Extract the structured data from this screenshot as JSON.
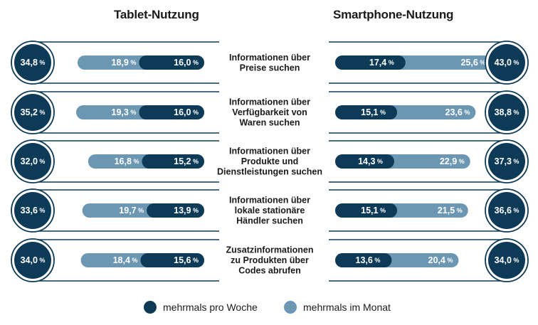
{
  "chart_data": {
    "type": "bar",
    "left_title": "Tablet-Nutzung",
    "right_title": "Smartphone-Nutzung",
    "categories": [
      [
        "Informationen über",
        "Preise suchen"
      ],
      [
        "Informationen über",
        "Verfügbarkeit von",
        "Waren suchen"
      ],
      [
        "Informationen über",
        "Produkte und",
        "Dienstleistungen suchen"
      ],
      [
        "Informationen über",
        "lokale stationäre",
        "Händler suchen"
      ],
      [
        "Zusatzinformationen",
        "zu Produkten über",
        "Codes abrufen"
      ]
    ],
    "tablet": {
      "total": [
        "34,8",
        "35,2",
        "32,0",
        "33,6",
        "34,0"
      ],
      "weekly": [
        16.0,
        16.0,
        15.2,
        13.9,
        15.6
      ],
      "monthly": [
        18.9,
        19.3,
        16.8,
        19.7,
        18.4
      ],
      "weekly_labels": [
        "16,0",
        "16,0",
        "15,2",
        "13,9",
        "15,6"
      ],
      "monthly_labels": [
        "18,9",
        "19,3",
        "16,8",
        "19,7",
        "18,4"
      ]
    },
    "smartphone": {
      "total": [
        "43,0",
        "38,8",
        "37,3",
        "36,6",
        "34,0"
      ],
      "weekly": [
        17.4,
        15.1,
        14.3,
        15.1,
        13.6
      ],
      "monthly": [
        25.6,
        23.6,
        22.9,
        21.5,
        20.4
      ],
      "weekly_labels": [
        "17,4",
        "15,1",
        "14,3",
        "15,1",
        "13,6"
      ],
      "monthly_labels": [
        "25,6",
        "23,6",
        "22,9",
        "21,5",
        "20,4"
      ]
    },
    "unit": "%",
    "series": [
      {
        "name": "mehrmals pro Woche",
        "color": "#0d3a57"
      },
      {
        "name": "mehrmals im Monat",
        "color": "#6c97b3"
      }
    ]
  }
}
